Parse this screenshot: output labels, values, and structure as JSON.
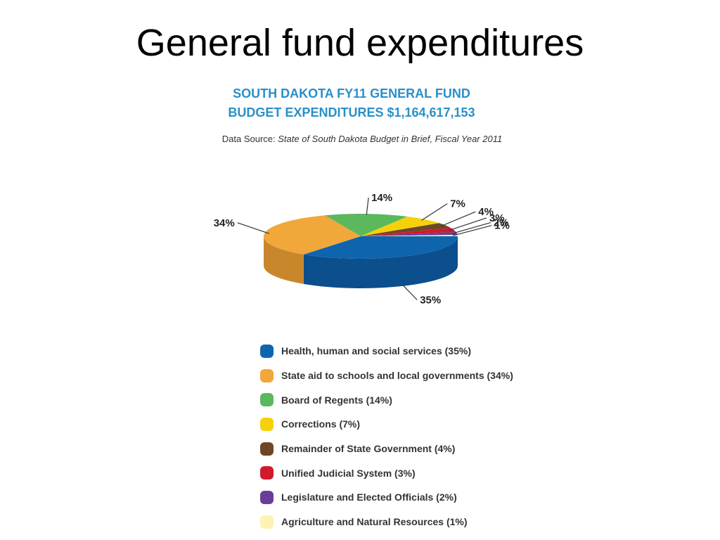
{
  "slide": {
    "title": "General fund expenditures"
  },
  "chart_data": {
    "type": "pie",
    "title_line1": "SOUTH DAKOTA FY11 GENERAL FUND",
    "title_line2": "BUDGET EXPENDITURES $1,164,617,153",
    "source_prefix": "Data Source: ",
    "source_title": "State of South Dakota Budget in Brief, Fiscal Year 2011",
    "title_color": "#2a8fc8",
    "slices": [
      {
        "label": "Health, human and social services (35%)",
        "value": 35,
        "pct_label": "35%",
        "color": "#0f64ae",
        "side_color": "#0b4f8c"
      },
      {
        "label": "State aid to schools and local governments (34%)",
        "value": 34,
        "pct_label": "34%",
        "color": "#f2a73b",
        "side_color": "#c9872c"
      },
      {
        "label": "Board of Regents (14%)",
        "value": 14,
        "pct_label": "14%",
        "color": "#5cb85c",
        "side_color": "#469446"
      },
      {
        "label": "Corrections (7%)",
        "value": 7,
        "pct_label": "7%",
        "color": "#f5d10d",
        "side_color": "#c9aa0a"
      },
      {
        "label": "Remainder of State Government (4%)",
        "value": 4,
        "pct_label": "4%",
        "color": "#6e4727",
        "side_color": "#55361d"
      },
      {
        "label": "Unified Judicial System (3%)",
        "value": 3,
        "pct_label": "3%",
        "color": "#d3192c",
        "side_color": "#a81322"
      },
      {
        "label": "Legislature and Elected Officials (2%)",
        "value": 2,
        "pct_label": "2%",
        "color": "#6a3d9a",
        "side_color": "#542f7b"
      },
      {
        "label": "Agriculture and Natural Resources (1%)",
        "value": 1,
        "pct_label": "1%",
        "color": "#fdf3b0",
        "side_color": "#e4d98f"
      }
    ]
  }
}
